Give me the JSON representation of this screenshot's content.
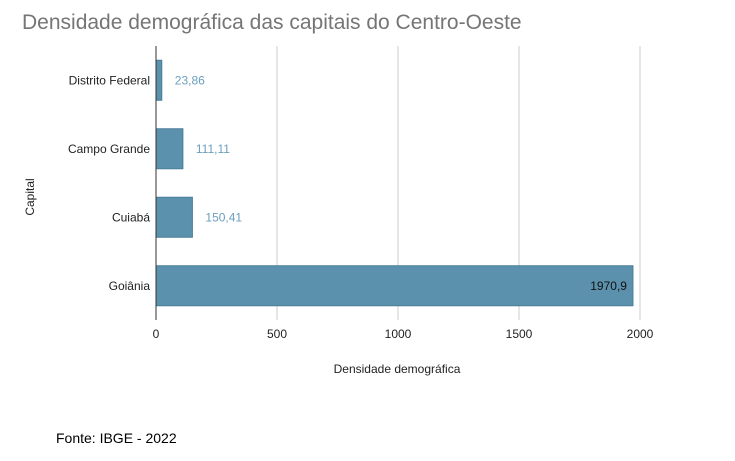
{
  "chart_data": {
    "type": "bar",
    "orientation": "horizontal",
    "title": "Densidade demográfica das capitais do Centro-Oeste",
    "xlabel": "Densidade demográfica",
    "ylabel": "Capital",
    "categories": [
      "Distrito Federal",
      "Campo Grande",
      "Cuiabá",
      "Goiânia"
    ],
    "values": [
      23.86,
      111.11,
      150.41,
      1970.9
    ],
    "data_labels": [
      "23,86",
      "111,11",
      "150,41",
      "1970,9"
    ],
    "xlim": [
      0,
      2000
    ],
    "x_ticks": [
      "0",
      "500",
      "1000",
      "1500",
      "2000"
    ],
    "grid": "vertical",
    "bar_color": "#5b91ad",
    "label_color": "#6a9fbc"
  },
  "source_note": "Fonte: IBGE - 2022"
}
